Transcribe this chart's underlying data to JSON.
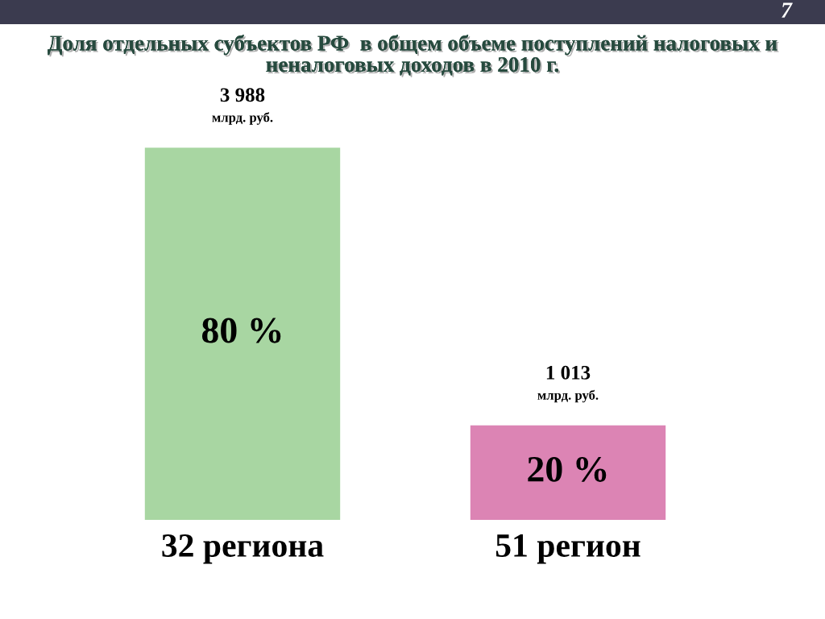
{
  "chart_data": {
    "type": "bar",
    "title": "Доля отдельных субъектов РФ  в общем объеме поступлений налоговых и неналоговых доходов в 2010 г.",
    "categories": [
      "32 региона",
      "51 регион"
    ],
    "values": [
      3988,
      1013
    ],
    "colors": [
      "#a8d6a2",
      "#dc84b4"
    ],
    "value_labels": [
      "3 988\nмлрд. руб.",
      "1 013\nмлрд. руб."
    ],
    "annotations": [
      "80 %",
      "20 %",
      "7"
    ],
    "tick_labels": "x"
  }
}
